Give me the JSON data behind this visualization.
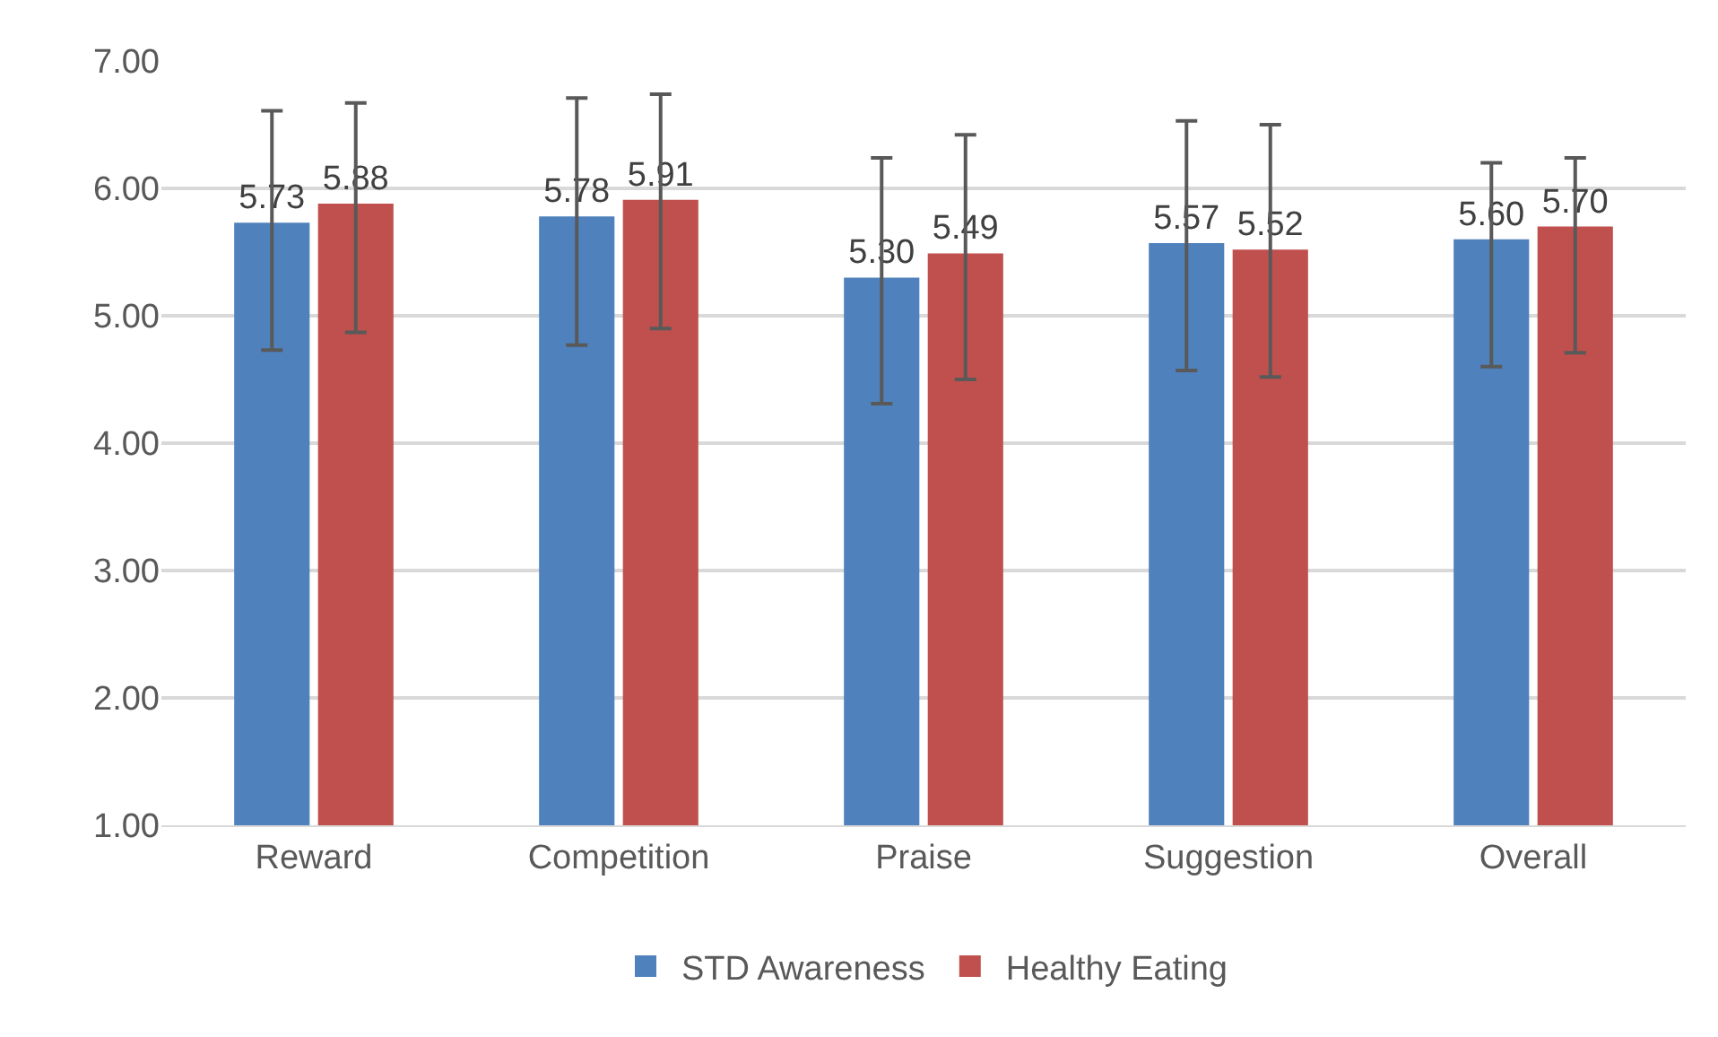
{
  "chart_data": {
    "type": "bar",
    "categories": [
      "Reward",
      "Competition",
      "Praise",
      "Suggestion",
      "Overall"
    ],
    "series": [
      {
        "name": "STD Awareness",
        "color": "#4f81bd",
        "values": [
          5.73,
          5.78,
          5.3,
          5.57,
          5.6
        ],
        "value_labels": [
          "5.73",
          "5.78",
          "5.30",
          "5.57",
          "5.60"
        ],
        "errors": [
          [
            4.73,
            6.61
          ],
          [
            4.77,
            6.71
          ],
          [
            4.31,
            6.24
          ],
          [
            4.57,
            6.53
          ],
          [
            4.6,
            6.2
          ]
        ]
      },
      {
        "name": "Healthy Eating",
        "color": "#c0504d",
        "values": [
          5.88,
          5.91,
          5.49,
          5.52,
          5.7
        ],
        "value_labels": [
          "5.88",
          "5.91",
          "5.49",
          "5.52",
          "5.70"
        ],
        "errors": [
          [
            4.87,
            6.67
          ],
          [
            4.9,
            6.74
          ],
          [
            4.5,
            6.42
          ],
          [
            4.52,
            6.5
          ],
          [
            4.71,
            6.24
          ]
        ]
      }
    ],
    "ylim": [
      1,
      7
    ],
    "yticks": [
      {
        "value": 1,
        "label": "1.00"
      },
      {
        "value": 2,
        "label": "2.00"
      },
      {
        "value": 3,
        "label": "3.00"
      },
      {
        "value": 4,
        "label": "4.00"
      },
      {
        "value": 5,
        "label": "5.00"
      },
      {
        "value": 6,
        "label": "6.00"
      },
      {
        "value": 7,
        "label": "7.00"
      }
    ],
    "grid": "y",
    "legend": "bottom"
  }
}
